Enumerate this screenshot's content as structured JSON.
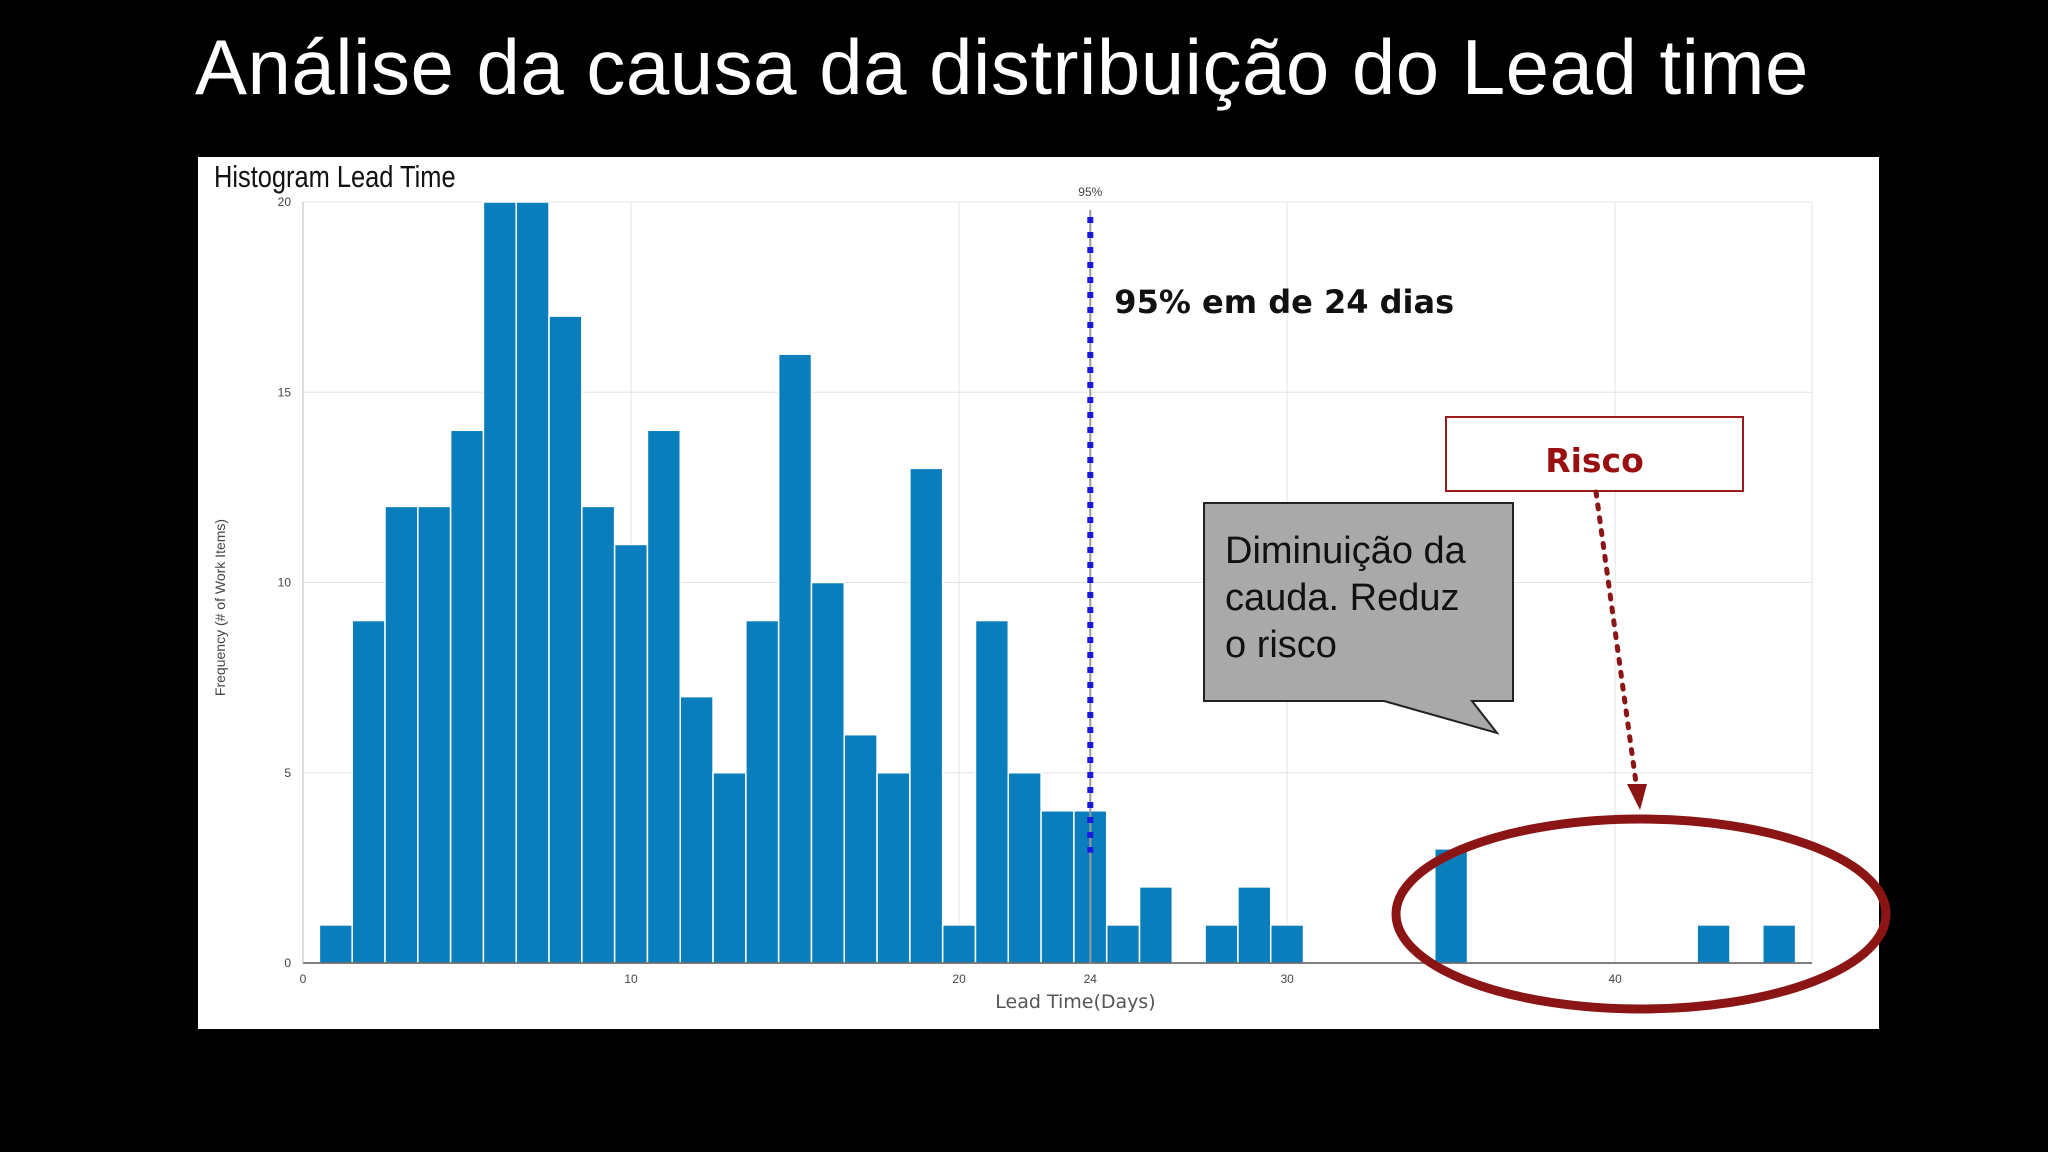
{
  "slide": {
    "title": "Análise da causa da distribuição do Lead time"
  },
  "colors": {
    "bar": "#0a7ebd",
    "bar_edge": "#ffffff",
    "percentile_line": "#1a1adc",
    "risk": "#9a1b1b",
    "callout_fill": "#a9a9a9"
  },
  "callout": {
    "lines": [
      "Diminuição da",
      "cauda. Reduz",
      "o risco"
    ]
  },
  "risk_box": {
    "label": "Risco"
  },
  "chart_data": {
    "type": "bar",
    "title": "Histogram Lead Time",
    "xlabel": "Lead Time(Days)",
    "ylabel": "Frequency (# of Work Items)",
    "xlim": [
      0,
      46
    ],
    "ylim": [
      0,
      20
    ],
    "x_ticks": [
      0,
      10,
      20,
      24,
      30,
      40
    ],
    "y_ticks": [
      0,
      5,
      10,
      15,
      20
    ],
    "grid": true,
    "bin_width": 1,
    "bins": [
      {
        "x": 1,
        "count": 1
      },
      {
        "x": 2,
        "count": 9
      },
      {
        "x": 3,
        "count": 12
      },
      {
        "x": 4,
        "count": 12
      },
      {
        "x": 5,
        "count": 14
      },
      {
        "x": 6,
        "count": 20
      },
      {
        "x": 7,
        "count": 20
      },
      {
        "x": 8,
        "count": 17
      },
      {
        "x": 9,
        "count": 12
      },
      {
        "x": 10,
        "count": 11
      },
      {
        "x": 11,
        "count": 14
      },
      {
        "x": 12,
        "count": 7
      },
      {
        "x": 13,
        "count": 5
      },
      {
        "x": 14,
        "count": 9
      },
      {
        "x": 15,
        "count": 16
      },
      {
        "x": 16,
        "count": 10
      },
      {
        "x": 17,
        "count": 6
      },
      {
        "x": 18,
        "count": 5
      },
      {
        "x": 19,
        "count": 13
      },
      {
        "x": 20,
        "count": 1
      },
      {
        "x": 21,
        "count": 9
      },
      {
        "x": 22,
        "count": 5
      },
      {
        "x": 23,
        "count": 4
      },
      {
        "x": 24,
        "count": 4
      },
      {
        "x": 25,
        "count": 1
      },
      {
        "x": 26,
        "count": 2
      },
      {
        "x": 28,
        "count": 1
      },
      {
        "x": 29,
        "count": 2
      },
      {
        "x": 30,
        "count": 1
      },
      {
        "x": 35,
        "count": 3
      },
      {
        "x": 43,
        "count": 1
      },
      {
        "x": 45,
        "count": 1
      }
    ],
    "percentile": {
      "value": 24,
      "label": "95%",
      "annotation": "95% em de 24 dias"
    }
  }
}
